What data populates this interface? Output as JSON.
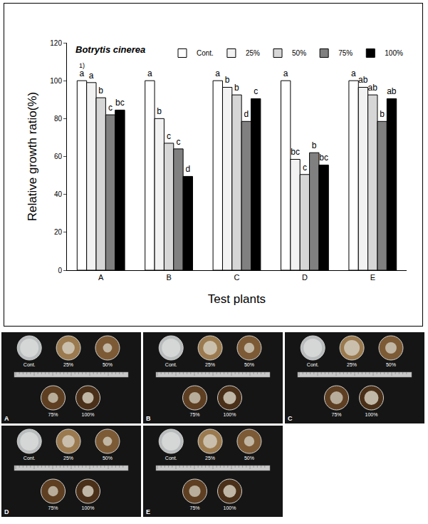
{
  "chart_data": {
    "type": "bar",
    "title": "Botrytis cinerea",
    "x_label": "Test plants",
    "y_label": "Relative growth ratio(%)",
    "categories": [
      "A",
      "B",
      "C",
      "D",
      "E"
    ],
    "series": [
      {
        "name": "Cont.",
        "color": "#ffffff",
        "values": [
          100,
          100,
          100,
          100,
          100
        ],
        "letters": [
          "a",
          "a",
          "a",
          "a",
          "a"
        ]
      },
      {
        "name": "25%",
        "color": "#f2f2f2",
        "values": [
          99,
          80,
          96.5,
          58.5,
          96.5
        ],
        "letters": [
          "a",
          "b",
          "b",
          "bc",
          "ab"
        ]
      },
      {
        "name": "50%",
        "color": "#d6d6d6",
        "values": [
          91,
          67,
          92.5,
          50.5,
          92.5
        ],
        "letters": [
          "b",
          "c",
          "b",
          "c",
          "ab"
        ]
      },
      {
        "name": "75%",
        "color": "#808080",
        "values": [
          82,
          64,
          78.5,
          62,
          78.5
        ],
        "letters": [
          "c",
          "c",
          "d",
          "b",
          "b"
        ]
      },
      {
        "name": "100%",
        "color": "#000000",
        "values": [
          84.5,
          49.5,
          90.5,
          55.5,
          90.5
        ],
        "letters": [
          "bc",
          "d",
          "c",
          "bc",
          "ab"
        ]
      }
    ],
    "annotations": [
      {
        "text": "1)",
        "category": "A",
        "series": "Cont."
      }
    ],
    "ylim": [
      0,
      120
    ],
    "yticks": [
      0,
      20,
      40,
      60,
      80,
      100,
      120
    ],
    "grid": false,
    "legend": "top right"
  },
  "photo_panels": {
    "panels": [
      "A",
      "B",
      "C",
      "D",
      "E"
    ],
    "dish_labels": [
      "Cont.",
      "25%",
      "50%",
      "75%",
      "100%"
    ]
  }
}
